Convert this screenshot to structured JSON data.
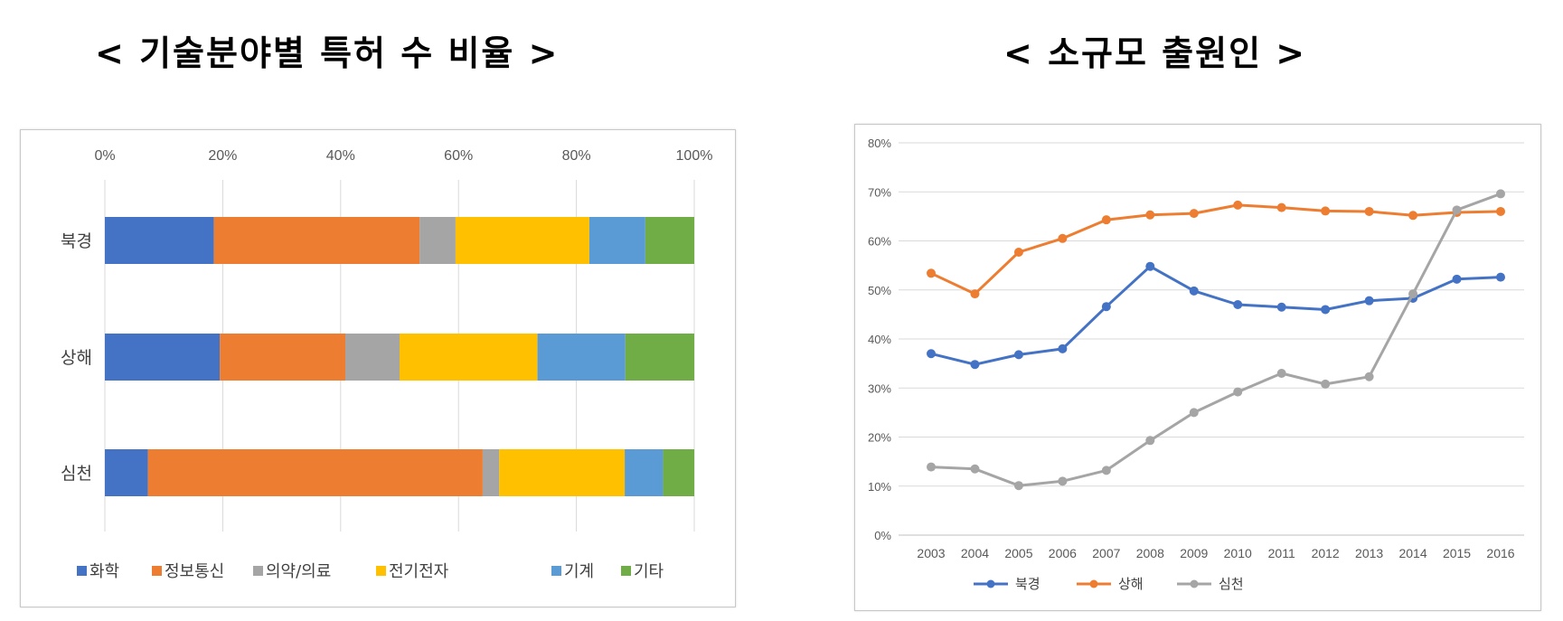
{
  "titles": {
    "left": "< 기술분야별 특허 수 비율 >",
    "right": "< 소규모 출원인 >"
  },
  "chart_data": [
    {
      "type": "bar",
      "stacked": "percent",
      "orientation": "horizontal",
      "categories": [
        "북경",
        "상해",
        "심천"
      ],
      "xticks": [
        "0%",
        "20%",
        "40%",
        "60%",
        "80%",
        "100%"
      ],
      "xlim": [
        0,
        100
      ],
      "series": [
        {
          "name": "화학",
          "color": "#4472C4",
          "values": [
            18.5,
            19.5,
            7.3
          ]
        },
        {
          "name": "정보통신",
          "color": "#ED7D31",
          "values": [
            34.9,
            21.3,
            56.8
          ]
        },
        {
          "name": "의약/의료",
          "color": "#A5A5A5",
          "values": [
            6.1,
            9.2,
            2.8
          ]
        },
        {
          "name": "전기전자",
          "color": "#FFC000",
          "values": [
            22.7,
            23.4,
            21.3
          ]
        },
        {
          "name": "기계",
          "color": "#5B9BD5",
          "values": [
            9.5,
            14.9,
            6.5
          ]
        },
        {
          "name": "기타",
          "color": "#70AD47",
          "values": [
            8.3,
            11.7,
            5.3
          ]
        }
      ],
      "grid": true,
      "legend": "bottom"
    },
    {
      "type": "line",
      "x": [
        "2003",
        "2004",
        "2005",
        "2006",
        "2007",
        "2008",
        "2009",
        "2010",
        "2011",
        "2012",
        "2013",
        "2014",
        "2015",
        "2016"
      ],
      "yticks": [
        "0%",
        "10%",
        "20%",
        "30%",
        "40%",
        "50%",
        "60%",
        "70%",
        "80%"
      ],
      "ylim": [
        0,
        80
      ],
      "series": [
        {
          "name": "북경",
          "color": "#4472C4",
          "values": [
            37,
            34.8,
            36.8,
            38,
            46.6,
            54.8,
            49.8,
            47,
            46.5,
            46,
            47.8,
            48.3,
            52.2,
            52.6
          ]
        },
        {
          "name": "상해",
          "color": "#ED7D31",
          "values": [
            53.4,
            49.2,
            57.7,
            60.5,
            64.3,
            65.3,
            65.6,
            67.3,
            66.8,
            66.1,
            66,
            65.2,
            65.8,
            66
          ]
        },
        {
          "name": "심천",
          "color": "#A5A5A5",
          "values": [
            13.9,
            13.5,
            10.1,
            11,
            13.2,
            19.3,
            25,
            29.2,
            33,
            30.8,
            32.3,
            49.2,
            66.3,
            69.6
          ]
        }
      ],
      "grid": true,
      "legend": "bottom"
    }
  ]
}
